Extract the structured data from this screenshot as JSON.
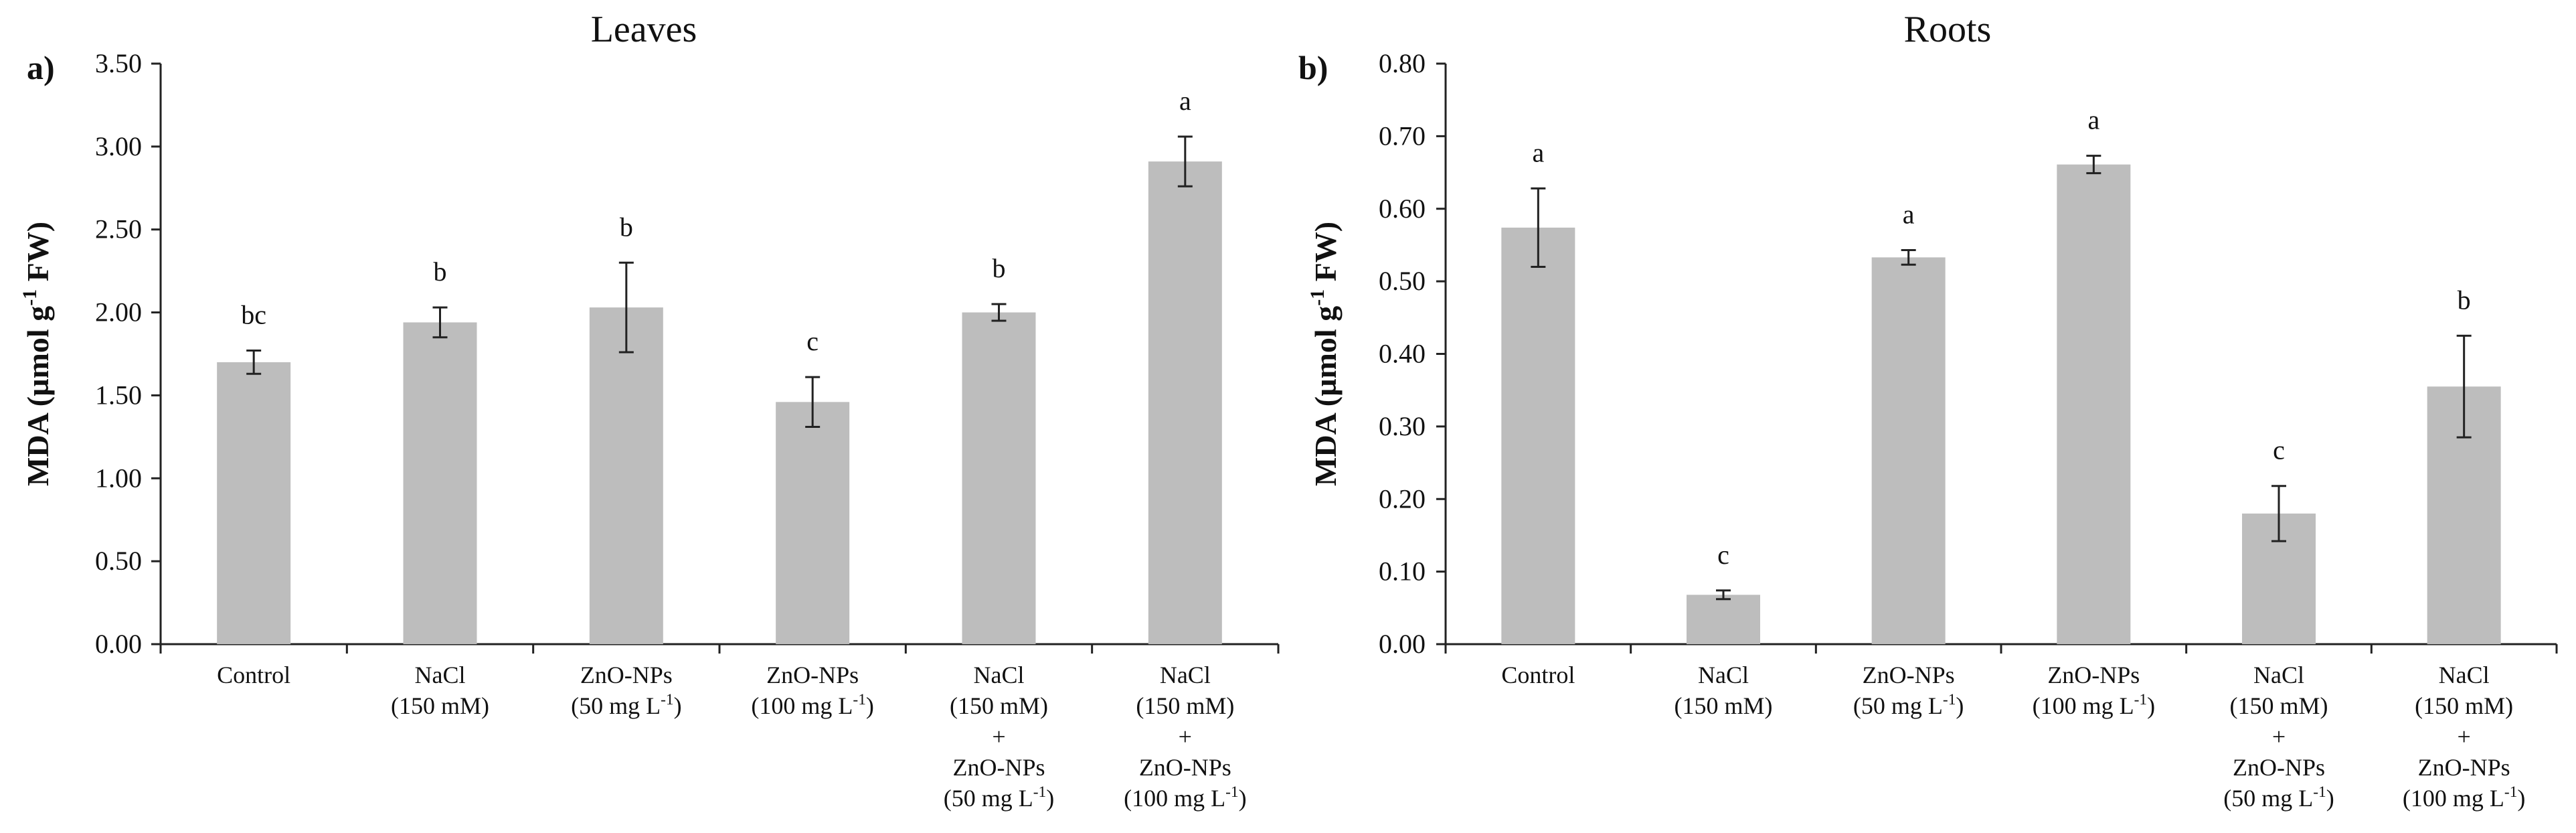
{
  "colors": {
    "bar": "#bdbdbd",
    "axis": "#222222",
    "text": "#111111"
  },
  "chart_data": [
    {
      "type": "bar",
      "panel_label": "a)",
      "title": "Leaves",
      "ylabel_parts": [
        "MDA (µmol g",
        "-1",
        " FW)"
      ],
      "ylim": [
        0,
        3.5
      ],
      "ytick_values": [
        0,
        0.5,
        1.0,
        1.5,
        2.0,
        2.5,
        3.0,
        3.5
      ],
      "ytick_labels": [
        "0.00",
        "0.50",
        "1.00",
        "1.50",
        "2.00",
        "2.50",
        "3.00",
        "3.50"
      ],
      "categories": [
        [
          [
            "Control"
          ]
        ],
        [
          [
            "NaCl"
          ],
          [
            "(150 mM)"
          ]
        ],
        [
          [
            "ZnO-NPs"
          ],
          [
            "(50 mg L",
            "-1",
            ")"
          ]
        ],
        [
          [
            "ZnO-NPs"
          ],
          [
            "(100 mg L",
            "-1",
            ")"
          ]
        ],
        [
          [
            "NaCl"
          ],
          [
            "(150 mM)"
          ],
          [
            "+"
          ],
          [
            "ZnO-NPs"
          ],
          [
            "(50 mg L",
            "-1",
            ")"
          ]
        ],
        [
          [
            "NaCl"
          ],
          [
            "(150 mM)"
          ],
          [
            "+"
          ],
          [
            "ZnO-NPs"
          ],
          [
            "(100 mg L",
            "-1",
            ")"
          ]
        ]
      ],
      "values": [
        1.7,
        1.94,
        2.03,
        1.46,
        2.0,
        2.91
      ],
      "errors": [
        0.07,
        0.09,
        0.27,
        0.15,
        0.05,
        0.15
      ],
      "significance": [
        "bc",
        "b",
        "b",
        "c",
        "b",
        "a"
      ]
    },
    {
      "type": "bar",
      "panel_label": "b)",
      "title": "Roots",
      "ylabel_parts": [
        "MDA (µmol g",
        "-1",
        " FW)"
      ],
      "ylim": [
        0,
        0.8
      ],
      "ytick_values": [
        0,
        0.1,
        0.2,
        0.3,
        0.4,
        0.5,
        0.6,
        0.7,
        0.8
      ],
      "ytick_labels": [
        "0.00",
        "0.10",
        "0.20",
        "0.30",
        "0.40",
        "0.50",
        "0.60",
        "0.70",
        "0.80"
      ],
      "categories": [
        [
          [
            "Control"
          ]
        ],
        [
          [
            "NaCl"
          ],
          [
            "(150 mM)"
          ]
        ],
        [
          [
            "ZnO-NPs"
          ],
          [
            "(50 mg L",
            "-1",
            ")"
          ]
        ],
        [
          [
            "ZnO-NPs"
          ],
          [
            "(100 mg L",
            "-1",
            ")"
          ]
        ],
        [
          [
            "NaCl"
          ],
          [
            "(150 mM)"
          ],
          [
            "+"
          ],
          [
            "ZnO-NPs"
          ],
          [
            "(50 mg L",
            "-1",
            ")"
          ]
        ],
        [
          [
            "NaCl"
          ],
          [
            "(150 mM)"
          ],
          [
            "+"
          ],
          [
            "ZnO-NPs"
          ],
          [
            "(100 mg L",
            "-1",
            ")"
          ]
        ]
      ],
      "values": [
        0.574,
        0.068,
        0.533,
        0.661,
        0.18,
        0.355
      ],
      "errors": [
        0.054,
        0.006,
        0.01,
        0.012,
        0.038,
        0.07
      ],
      "significance": [
        "a",
        "c",
        "a",
        "a",
        "c",
        "b"
      ]
    }
  ]
}
